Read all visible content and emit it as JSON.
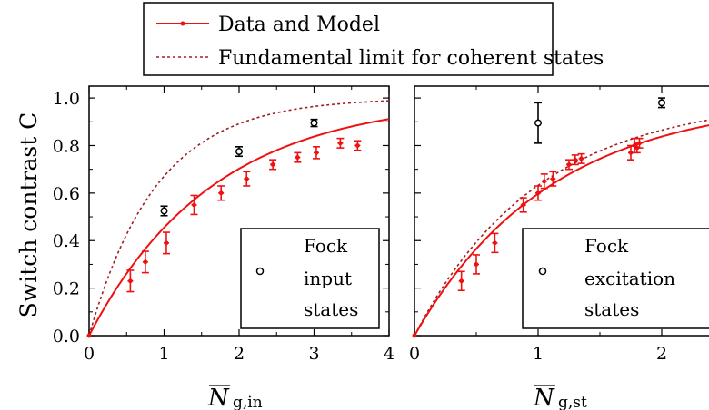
{
  "legend": {
    "items": [
      {
        "label": "Data and Model",
        "style": "solid-red-with-dots"
      },
      {
        "label": "Fundamental limit for coherent states",
        "style": "dotted-darkred"
      }
    ]
  },
  "colors": {
    "model": "#ee1111",
    "limit": "#a02020",
    "fock": "#000000"
  },
  "chart_data": [
    {
      "type": "scatter",
      "panel": "left",
      "ylabel": "Switch contrast C",
      "xlabel": "N̄_g,in",
      "xlabel_main": "N",
      "xlabel_sub": "g,in",
      "xlim": [
        0,
        4
      ],
      "ylim": [
        0,
        1.05
      ],
      "xticks": [
        "0",
        "1",
        "2",
        "3",
        "4"
      ],
      "yticks": [
        "0.0",
        "0.2",
        "0.4",
        "0.6",
        "0.8",
        "1.0"
      ],
      "inset_legend": [
        "Fock",
        "input",
        "states"
      ],
      "series": [
        {
          "name": "Data and Model",
          "x": [
            0.55,
            0.75,
            1.03,
            1.4,
            1.76,
            2.1,
            2.45,
            2.78,
            3.03,
            3.35,
            3.58
          ],
          "y": [
            0.23,
            0.31,
            0.39,
            0.55,
            0.6,
            0.66,
            0.72,
            0.75,
            0.77,
            0.81,
            0.8
          ],
          "yerr": [
            0.045,
            0.045,
            0.045,
            0.04,
            0.03,
            0.03,
            0.02,
            0.02,
            0.025,
            0.02,
            0.02
          ]
        },
        {
          "name": "Fock input states",
          "x": [
            1,
            2,
            3
          ],
          "y": [
            0.525,
            0.775,
            0.895
          ],
          "yerr": [
            0.02,
            0.02,
            0.015
          ]
        }
      ],
      "model_curve": {
        "name": "Data and Model",
        "function": "1-exp(-x/1.65)"
      },
      "limit_curve": {
        "name": "Fundamental limit for coherent states",
        "function": "1-exp(-x/0.9)"
      }
    },
    {
      "type": "scatter",
      "panel": "right",
      "xlabel": "N̄_g,st",
      "xlabel_main": "N",
      "xlabel_sub": "g,st",
      "xlim": [
        0,
        2.5
      ],
      "ylim": [
        0,
        1.05
      ],
      "xticks": [
        "0",
        "1",
        "2"
      ],
      "inset_legend": [
        "Fock",
        "excitation",
        "states"
      ],
      "series": [
        {
          "name": "Data and Model",
          "x": [
            0.38,
            0.5,
            0.65,
            0.88,
            1.0,
            1.05,
            1.12,
            1.25,
            1.3,
            1.35,
            1.75,
            1.78,
            1.8,
            1.82
          ],
          "y": [
            0.23,
            0.3,
            0.39,
            0.55,
            0.6,
            0.65,
            0.66,
            0.72,
            0.74,
            0.745,
            0.77,
            0.8,
            0.79,
            0.81
          ],
          "yerr": [
            0.04,
            0.04,
            0.04,
            0.03,
            0.03,
            0.03,
            0.03,
            0.02,
            0.02,
            0.02,
            0.03,
            0.03,
            0.02,
            0.02
          ]
        },
        {
          "name": "Fock excitation states",
          "x": [
            1,
            2
          ],
          "y": [
            0.895,
            0.98
          ],
          "yerr": [
            0.085,
            0.02
          ]
        }
      ],
      "model_curve": {
        "name": "Data and Model",
        "function": "1-exp(-x/1.1)"
      },
      "limit_curve": {
        "name": "Fundamental limit for coherent states",
        "function": "1-exp(-x/1.0)"
      }
    }
  ]
}
